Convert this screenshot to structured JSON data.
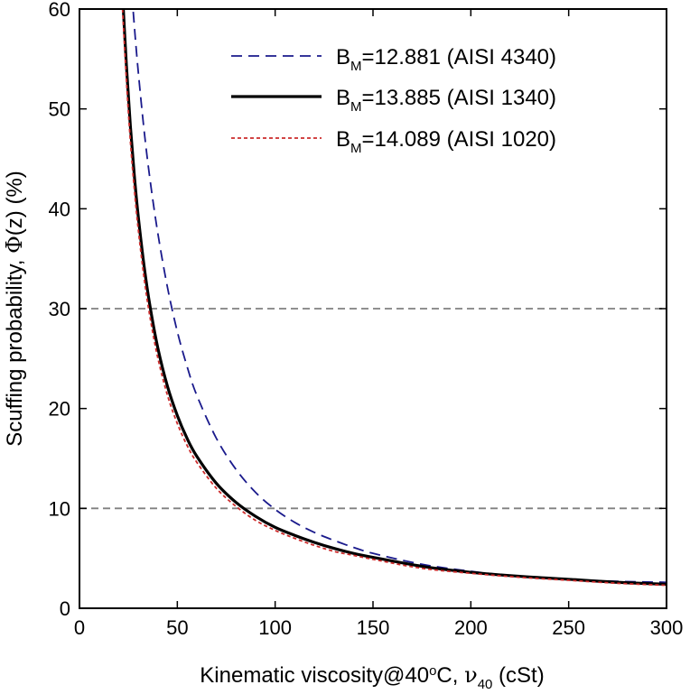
{
  "chart_data": {
    "type": "line",
    "xlabel_parts": [
      "Kinematic viscosity@40",
      "o",
      "C, ",
      "ν",
      "40",
      " (cSt)"
    ],
    "ylabel_parts": [
      "Scuffing probability, ",
      "Φ",
      "(z) (%)"
    ],
    "xlim": [
      0,
      300
    ],
    "ylim": [
      0,
      60
    ],
    "xticks": [
      0,
      50,
      100,
      150,
      200,
      250,
      300
    ],
    "yticks": [
      0,
      10,
      20,
      30,
      40,
      50,
      60
    ],
    "reference_lines_y": [
      10,
      30
    ],
    "legend_position": "top-right",
    "series": [
      {
        "name_main": "B",
        "name_sub": "M",
        "name_rest": "=12.881 (AISI 4340)",
        "color": "#1a1a8c",
        "style": "dashed",
        "x": [
          24,
          26,
          28,
          30,
          33,
          36,
          40,
          45,
          50,
          55,
          60,
          70,
          80,
          90,
          100,
          110,
          120,
          130,
          140,
          150,
          175,
          200,
          225,
          250,
          275,
          300
        ],
        "y": [
          70.0,
          63.7,
          58.4,
          53.8,
          47.9,
          43.0,
          37.6,
          32.1,
          27.7,
          24.2,
          21.3,
          17.0,
          13.9,
          11.6,
          9.9,
          8.6,
          7.6,
          6.8,
          6.1,
          5.5,
          4.4,
          3.7,
          3.2,
          2.9,
          2.7,
          2.6
        ]
      },
      {
        "name_main": "B",
        "name_sub": "M",
        "name_rest": "=13.885 (AISI 1340)",
        "color": "#000000",
        "style": "solid",
        "x": [
          22,
          24,
          26,
          28,
          30,
          33,
          36,
          40,
          45,
          50,
          55,
          60,
          70,
          80,
          90,
          100,
          110,
          120,
          130,
          140,
          150,
          175,
          200,
          225,
          250,
          275,
          300
        ],
        "y": [
          61.5,
          54.3,
          48.3,
          43.4,
          39.3,
          34.3,
          30.3,
          26.1,
          22.2,
          19.3,
          17.0,
          15.2,
          12.5,
          10.6,
          9.2,
          8.1,
          7.3,
          6.6,
          6.0,
          5.5,
          5.1,
          4.2,
          3.6,
          3.2,
          2.9,
          2.6,
          2.4
        ]
      },
      {
        "name_main": "B",
        "name_sub": "M",
        "name_rest": "=14.089 (AISI 1020)",
        "color": "#cc2b2b",
        "style": "dotted",
        "x": [
          22,
          24,
          26,
          28,
          30,
          33,
          36,
          40,
          45,
          50,
          55,
          60,
          70,
          80,
          90,
          100,
          110,
          120,
          130,
          140,
          150,
          175,
          200,
          225,
          250,
          275,
          300
        ],
        "y": [
          60.0,
          52.8,
          46.8,
          42.0,
          38.0,
          33.1,
          29.2,
          25.1,
          21.3,
          18.5,
          16.3,
          14.6,
          12.0,
          10.2,
          8.8,
          7.8,
          7.0,
          6.3,
          5.7,
          5.3,
          4.9,
          4.0,
          3.5,
          3.1,
          2.8,
          2.5,
          2.3
        ]
      }
    ]
  }
}
